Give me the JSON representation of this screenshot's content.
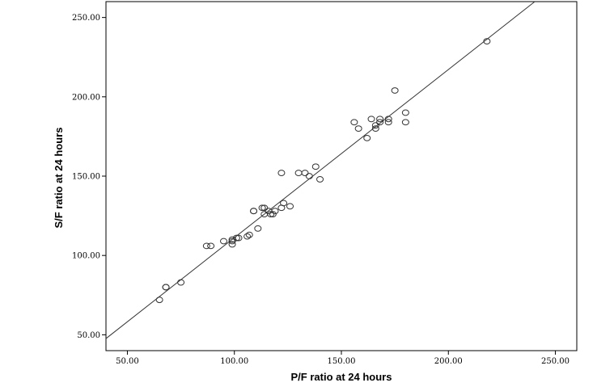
{
  "chart_data": {
    "type": "scatter",
    "title": "",
    "xlabel": "P/F ratio at 24 hours",
    "ylabel": "S/F ratio at 24 hours",
    "xlim": [
      40,
      260
    ],
    "ylim": [
      40,
      260
    ],
    "x_ticks": [
      50,
      100,
      150,
      200,
      250
    ],
    "y_ticks": [
      50,
      100,
      150,
      200,
      250
    ],
    "x_tick_labels": [
      "50.00",
      "100.00",
      "150.00",
      "200.00",
      "250.00"
    ],
    "y_tick_labels": [
      "50.00",
      "100.00",
      "150.00",
      "200.00",
      "250.00"
    ],
    "grid": false,
    "legend": "none",
    "marker": "open-circle",
    "fit_line": {
      "slope": 1.06,
      "intercept": 5.2
    },
    "points": [
      [
        65,
        72
      ],
      [
        68,
        80
      ],
      [
        68,
        80
      ],
      [
        75,
        83
      ],
      [
        87,
        106
      ],
      [
        89,
        106
      ],
      [
        95,
        109
      ],
      [
        99,
        109
      ],
      [
        99,
        110
      ],
      [
        99,
        107
      ],
      [
        101,
        111
      ],
      [
        102,
        111
      ],
      [
        106,
        112
      ],
      [
        107,
        113
      ],
      [
        109,
        128
      ],
      [
        109,
        128
      ],
      [
        111,
        117
      ],
      [
        113,
        130
      ],
      [
        114,
        130
      ],
      [
        114,
        126
      ],
      [
        116,
        128
      ],
      [
        117,
        126
      ],
      [
        118,
        126
      ],
      [
        119,
        128
      ],
      [
        122,
        152
      ],
      [
        122,
        130
      ],
      [
        123,
        133
      ],
      [
        126,
        131
      ],
      [
        130,
        152
      ],
      [
        133,
        152
      ],
      [
        135,
        150
      ],
      [
        138,
        156
      ],
      [
        140,
        148
      ],
      [
        156,
        184
      ],
      [
        158,
        180
      ],
      [
        162,
        174
      ],
      [
        164,
        186
      ],
      [
        166,
        182
      ],
      [
        166,
        180
      ],
      [
        168,
        186
      ],
      [
        168,
        184
      ],
      [
        172,
        186
      ],
      [
        172,
        184
      ],
      [
        175,
        204
      ],
      [
        180,
        190
      ],
      [
        180,
        184
      ],
      [
        218,
        235
      ]
    ],
    "colors": {
      "marker": "#333333",
      "line": "#333333",
      "frame": "#000000"
    }
  }
}
